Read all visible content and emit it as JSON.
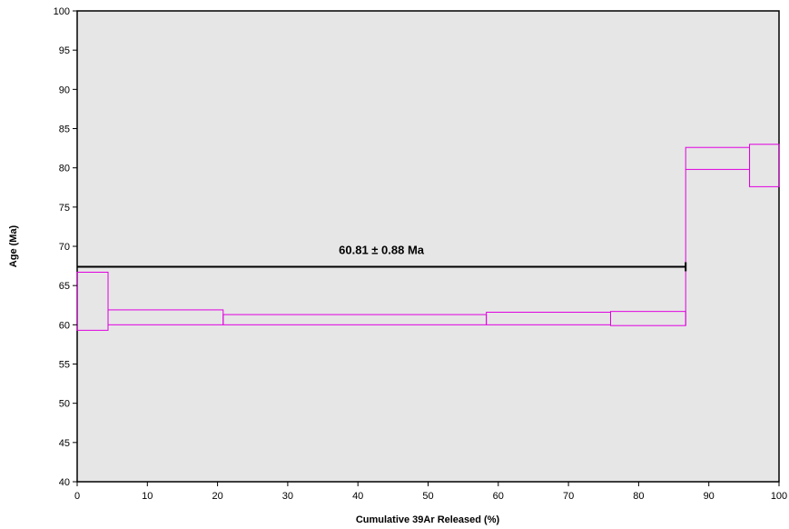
{
  "chart_data": {
    "type": "step-spectrum",
    "title": "",
    "xlabel": "Cumulative 39Ar Released (%)",
    "ylabel": "Age (Ma)",
    "xlim": [
      0,
      100
    ],
    "ylim": [
      40,
      100
    ],
    "xticks": [
      0,
      10,
      20,
      30,
      40,
      50,
      60,
      70,
      80,
      90,
      100
    ],
    "yticks": [
      40,
      45,
      50,
      55,
      60,
      65,
      70,
      75,
      80,
      85,
      90,
      95,
      100
    ],
    "grid": false,
    "plot_background": "#e6e6e6",
    "step_color": "#e000e0",
    "steps": [
      {
        "x_start": 0.0,
        "x_end": 4.4,
        "age_low": 59.3,
        "age_high": 66.7
      },
      {
        "x_start": 4.4,
        "x_end": 20.8,
        "age_low": 60.0,
        "age_high": 61.9
      },
      {
        "x_start": 20.8,
        "x_end": 58.3,
        "age_low": 60.0,
        "age_high": 61.3
      },
      {
        "x_start": 58.3,
        "x_end": 76.0,
        "age_low": 60.0,
        "age_high": 61.6
      },
      {
        "x_start": 76.0,
        "x_end": 86.7,
        "age_low": 59.9,
        "age_high": 61.7
      },
      {
        "x_start": 86.7,
        "x_end": 95.8,
        "age_low": 79.8,
        "age_high": 82.6
      },
      {
        "x_start": 95.8,
        "x_end": 100.0,
        "age_low": 77.6,
        "age_high": 83.0
      }
    ],
    "plateau": {
      "label": "60.81 ± 0.88 Ma",
      "x_start": 0,
      "x_end": 86.7,
      "y": 67.4,
      "color": "#000000"
    }
  }
}
